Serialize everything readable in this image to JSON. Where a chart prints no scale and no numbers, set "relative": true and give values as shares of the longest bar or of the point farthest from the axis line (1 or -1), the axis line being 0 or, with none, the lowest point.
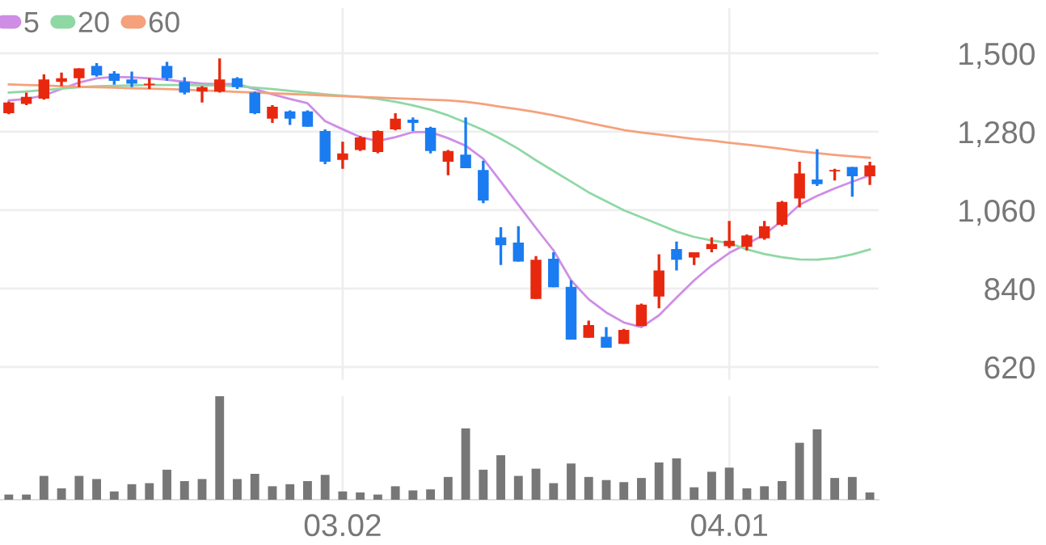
{
  "chart_data": [
    {
      "type": "candlestick",
      "categories": [
        null,
        null,
        null,
        null,
        null,
        null,
        null,
        null,
        null,
        null,
        null,
        null,
        null,
        null,
        null,
        null,
        null,
        null,
        null,
        "03.02",
        null,
        null,
        null,
        null,
        null,
        null,
        null,
        null,
        null,
        null,
        null,
        null,
        null,
        null,
        null,
        null,
        null,
        null,
        null,
        null,
        null,
        "04.01",
        null,
        null,
        null,
        null,
        null,
        null,
        null,
        null
      ],
      "ohlc": [
        [
          1332,
          1365,
          1329,
          1362
        ],
        [
          1358,
          1390,
          1355,
          1378
        ],
        [
          1373,
          1441,
          1370,
          1427
        ],
        [
          1420,
          1446,
          1408,
          1430
        ],
        [
          1430,
          1458,
          1405,
          1458
        ],
        [
          1465,
          1473,
          1435,
          1438
        ],
        [
          1443,
          1450,
          1412,
          1423
        ],
        [
          1427,
          1449,
          1405,
          1415
        ],
        [
          1411,
          1430,
          1400,
          1415
        ],
        [
          1465,
          1476,
          1423,
          1430
        ],
        [
          1420,
          1433,
          1385,
          1390
        ],
        [
          1393,
          1408,
          1362,
          1405
        ],
        [
          1393,
          1486,
          1390,
          1427
        ],
        [
          1430,
          1433,
          1400,
          1405
        ],
        [
          1390,
          1393,
          1329,
          1332
        ],
        [
          1317,
          1355,
          1305,
          1350
        ],
        [
          1337,
          1340,
          1299,
          1317
        ],
        [
          1337,
          1340,
          1294,
          1294
        ],
        [
          1282,
          1287,
          1189,
          1196
        ],
        [
          1201,
          1252,
          1176,
          1219
        ],
        [
          1229,
          1268,
          1226,
          1264
        ],
        [
          1223,
          1284,
          1220,
          1282
        ],
        [
          1287,
          1332,
          1284,
          1317
        ],
        [
          1314,
          1320,
          1282,
          1305
        ],
        [
          1291,
          1294,
          1219,
          1226
        ],
        [
          1196,
          1229,
          1158,
          1226
        ],
        [
          1216,
          1320,
          1178,
          1178
        ],
        [
          1173,
          1199,
          1080,
          1087
        ],
        [
          984,
          1012,
          906,
          962
        ],
        [
          969,
          1015,
          916,
          916
        ],
        [
          811,
          931,
          811,
          921
        ],
        [
          924,
          942,
          844,
          844
        ],
        [
          845,
          863,
          697,
          697
        ],
        [
          702,
          750,
          702,
          738
        ],
        [
          705,
          732,
          674,
          674
        ],
        [
          685,
          727,
          685,
          724
        ],
        [
          735,
          798,
          735,
          795
        ],
        [
          818,
          936,
          785,
          891
        ],
        [
          951,
          972,
          891,
          921
        ],
        [
          927,
          942,
          906,
          942
        ],
        [
          951,
          984,
          942,
          965
        ],
        [
          959,
          1030,
          954,
          974
        ],
        [
          957,
          992,
          947,
          989
        ],
        [
          981,
          1030,
          977,
          1015
        ],
        [
          1019,
          1086,
          1015,
          1083
        ],
        [
          1093,
          1196,
          1068,
          1163
        ],
        [
          1146,
          1231,
          1128,
          1133
        ],
        [
          1169,
          1176,
          1143,
          1173
        ],
        [
          1181,
          1181,
          1098,
          1155
        ],
        [
          1155,
          1196,
          1131,
          1186
        ]
      ],
      "colors": [
        "#e8280e",
        "#e8280e",
        "#e8280e",
        "#e8280e",
        "#e8280e",
        "#1a7cf0",
        "#1a7cf0",
        "#1a7cf0",
        "#e8280e",
        "#1a7cf0",
        "#1a7cf0",
        "#e8280e",
        "#e8280e",
        "#1a7cf0",
        "#1a7cf0",
        "#e8280e",
        "#1a7cf0",
        "#1a7cf0",
        "#1a7cf0",
        "#e8280e",
        "#e8280e",
        "#e8280e",
        "#e8280e",
        "#1a7cf0",
        "#1a7cf0",
        "#e8280e",
        "#1a7cf0",
        "#1a7cf0",
        "#1a7cf0",
        "#1a7cf0",
        "#e8280e",
        "#1a7cf0",
        "#1a7cf0",
        "#e8280e",
        "#1a7cf0",
        "#e8280e",
        "#e8280e",
        "#e8280e",
        "#1a7cf0",
        "#e8280e",
        "#e8280e",
        "#e8280e",
        "#e8280e",
        "#e8280e",
        "#e8280e",
        "#e8280e",
        "#1a7cf0",
        "#e8280e",
        "#1a7cf0",
        "#e8280e"
      ],
      "series": [
        {
          "name": "5",
          "type": "line",
          "color": "#cf8ee6",
          "values": [
            1368,
            1372,
            1382,
            1400,
            1418,
            1430,
            1434,
            1433,
            1430,
            1426,
            1420,
            1415,
            1414,
            1414,
            1400,
            1385,
            1372,
            1360,
            1310,
            1287,
            1265,
            1254,
            1265,
            1279,
            1279,
            1262,
            1241,
            1204,
            1140,
            1075,
            1010,
            947,
            863,
            810,
            773,
            745,
            732,
            765,
            815,
            863,
            905,
            940,
            965,
            992,
            1030,
            1075,
            1100,
            1121,
            1140,
            1158
          ]
        },
        {
          "name": "20",
          "type": "line",
          "color": "#8fd8a4",
          "values": [
            1390,
            1393,
            1397,
            1401,
            1405,
            1408,
            1409,
            1410,
            1411,
            1411,
            1411,
            1410,
            1410,
            1408,
            1404,
            1400,
            1395,
            1390,
            1385,
            1381,
            1378,
            1372,
            1364,
            1354,
            1342,
            1326,
            1306,
            1285,
            1260,
            1232,
            1200,
            1170,
            1140,
            1110,
            1085,
            1060,
            1040,
            1020,
            1000,
            985,
            975,
            968,
            950,
            937,
            928,
            922,
            921,
            926,
            936,
            950
          ]
        },
        {
          "name": "60",
          "type": "line",
          "color": "#f5a17c",
          "values": [
            1413,
            1411,
            1410,
            1408,
            1406,
            1405,
            1404,
            1402,
            1401,
            1400,
            1398,
            1396,
            1394,
            1392,
            1390,
            1388,
            1386,
            1384,
            1382,
            1380,
            1378,
            1376,
            1374,
            1372,
            1370,
            1368,
            1364,
            1358,
            1350,
            1343,
            1335,
            1326,
            1316,
            1305,
            1295,
            1285,
            1278,
            1272,
            1266,
            1260,
            1255,
            1249,
            1244,
            1238,
            1232,
            1225,
            1220,
            1215,
            1211,
            1207
          ]
        }
      ],
      "ylim": [
        584,
        1627
      ],
      "yticks": [
        620,
        840,
        {
          "value": 1060,
          "label": "1,060"
        },
        {
          "value": 1280,
          "label": "1,280"
        },
        {
          "value": 1500,
          "label": "1,500"
        }
      ],
      "grid": true,
      "legend": "top left",
      "tick_labels": "y"
    },
    {
      "type": "bar",
      "relative": true,
      "categories": [
        null,
        null,
        null,
        null,
        null,
        null,
        null,
        null,
        null,
        null,
        null,
        null,
        null,
        null,
        null,
        null,
        null,
        null,
        null,
        "03.02",
        null,
        null,
        null,
        null,
        null,
        null,
        null,
        null,
        null,
        null,
        null,
        null,
        null,
        null,
        null,
        null,
        null,
        null,
        null,
        null,
        null,
        "04.01",
        null,
        null,
        null,
        null,
        null,
        null,
        null,
        null
      ],
      "values": [
        0.05,
        0.05,
        0.23,
        0.11,
        0.23,
        0.2,
        0.08,
        0.15,
        0.16,
        0.29,
        0.18,
        0.2,
        1,
        0.2,
        0.25,
        0.13,
        0.15,
        0.18,
        0.24,
        0.08,
        0.07,
        0.05,
        0.13,
        0.09,
        0.1,
        0.22,
        0.69,
        0.29,
        0.43,
        0.23,
        0.3,
        0.16,
        0.35,
        0.22,
        0.19,
        0.17,
        0.21,
        0.36,
        0.4,
        0.12,
        0.27,
        0.31,
        0.11,
        0.13,
        0.18,
        0.55,
        0.68,
        0.21,
        0.22,
        0.07
      ],
      "color": "#777777",
      "grid": "x",
      "tick_labels": "x"
    }
  ]
}
